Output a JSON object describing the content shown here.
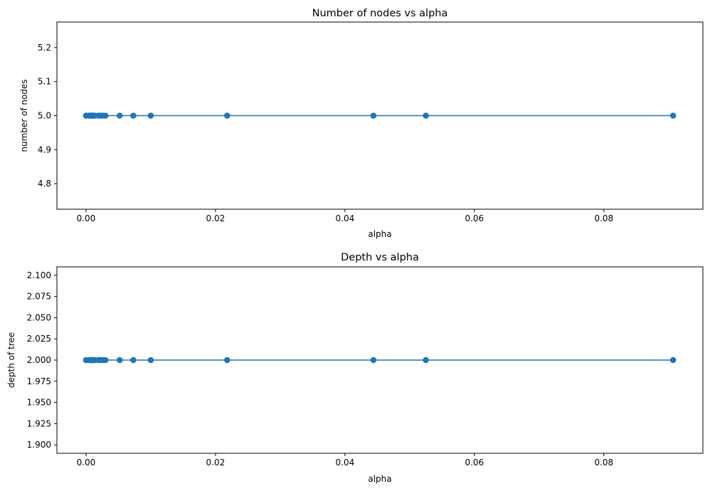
{
  "chart_data": [
    {
      "type": "line",
      "title": "Number of nodes vs alpha",
      "xlabel": "alpha",
      "ylabel": "number of nodes",
      "xlim": [
        -0.0045,
        0.0953
      ],
      "ylim": [
        4.725,
        5.275
      ],
      "xticks": [
        0.0,
        0.02,
        0.04,
        0.06,
        0.08
      ],
      "xtick_labels": [
        "0.00",
        "0.02",
        "0.04",
        "0.06",
        "0.08"
      ],
      "yticks": [
        4.8,
        4.9,
        5.0,
        5.1,
        5.2
      ],
      "ytick_labels": [
        "4.8",
        "4.9",
        "5.0",
        "5.1",
        "5.2"
      ],
      "grid": false,
      "marker": "o",
      "color": "#1f77b4",
      "series": [
        {
          "x": [
            0.0,
            0.0004,
            0.0006,
            0.0008,
            0.0009,
            0.001,
            0.0011,
            0.0012,
            0.0013,
            0.0019,
            0.0022,
            0.0026,
            0.003,
            0.0052,
            0.0073,
            0.01,
            0.0218,
            0.0444,
            0.0525,
            0.0907
          ],
          "y": [
            5,
            5,
            5,
            5,
            5,
            5,
            5,
            5,
            5,
            5,
            5,
            5,
            5,
            5,
            5,
            5,
            5,
            5,
            5,
            5
          ]
        }
      ]
    },
    {
      "type": "line",
      "title": "Depth vs alpha",
      "xlabel": "alpha",
      "ylabel": "depth of tree",
      "xlim": [
        -0.0045,
        0.0953
      ],
      "ylim": [
        1.89,
        2.11
      ],
      "xticks": [
        0.0,
        0.02,
        0.04,
        0.06,
        0.08
      ],
      "xtick_labels": [
        "0.00",
        "0.02",
        "0.04",
        "0.06",
        "0.08"
      ],
      "yticks": [
        1.9,
        1.925,
        1.95,
        1.975,
        2.0,
        2.025,
        2.05,
        2.075,
        2.1
      ],
      "ytick_labels": [
        "1.900",
        "1.925",
        "1.950",
        "1.975",
        "2.000",
        "2.025",
        "2.050",
        "2.075",
        "2.100"
      ],
      "grid": false,
      "marker": "o",
      "color": "#1f77b4",
      "series": [
        {
          "x": [
            0.0,
            0.0004,
            0.0006,
            0.0008,
            0.0009,
            0.001,
            0.0011,
            0.0012,
            0.0013,
            0.0019,
            0.0022,
            0.0026,
            0.003,
            0.0052,
            0.0073,
            0.01,
            0.0218,
            0.0444,
            0.0525,
            0.0907
          ],
          "y": [
            2,
            2,
            2,
            2,
            2,
            2,
            2,
            2,
            2,
            2,
            2,
            2,
            2,
            2,
            2,
            2,
            2,
            2,
            2,
            2
          ]
        }
      ]
    }
  ]
}
